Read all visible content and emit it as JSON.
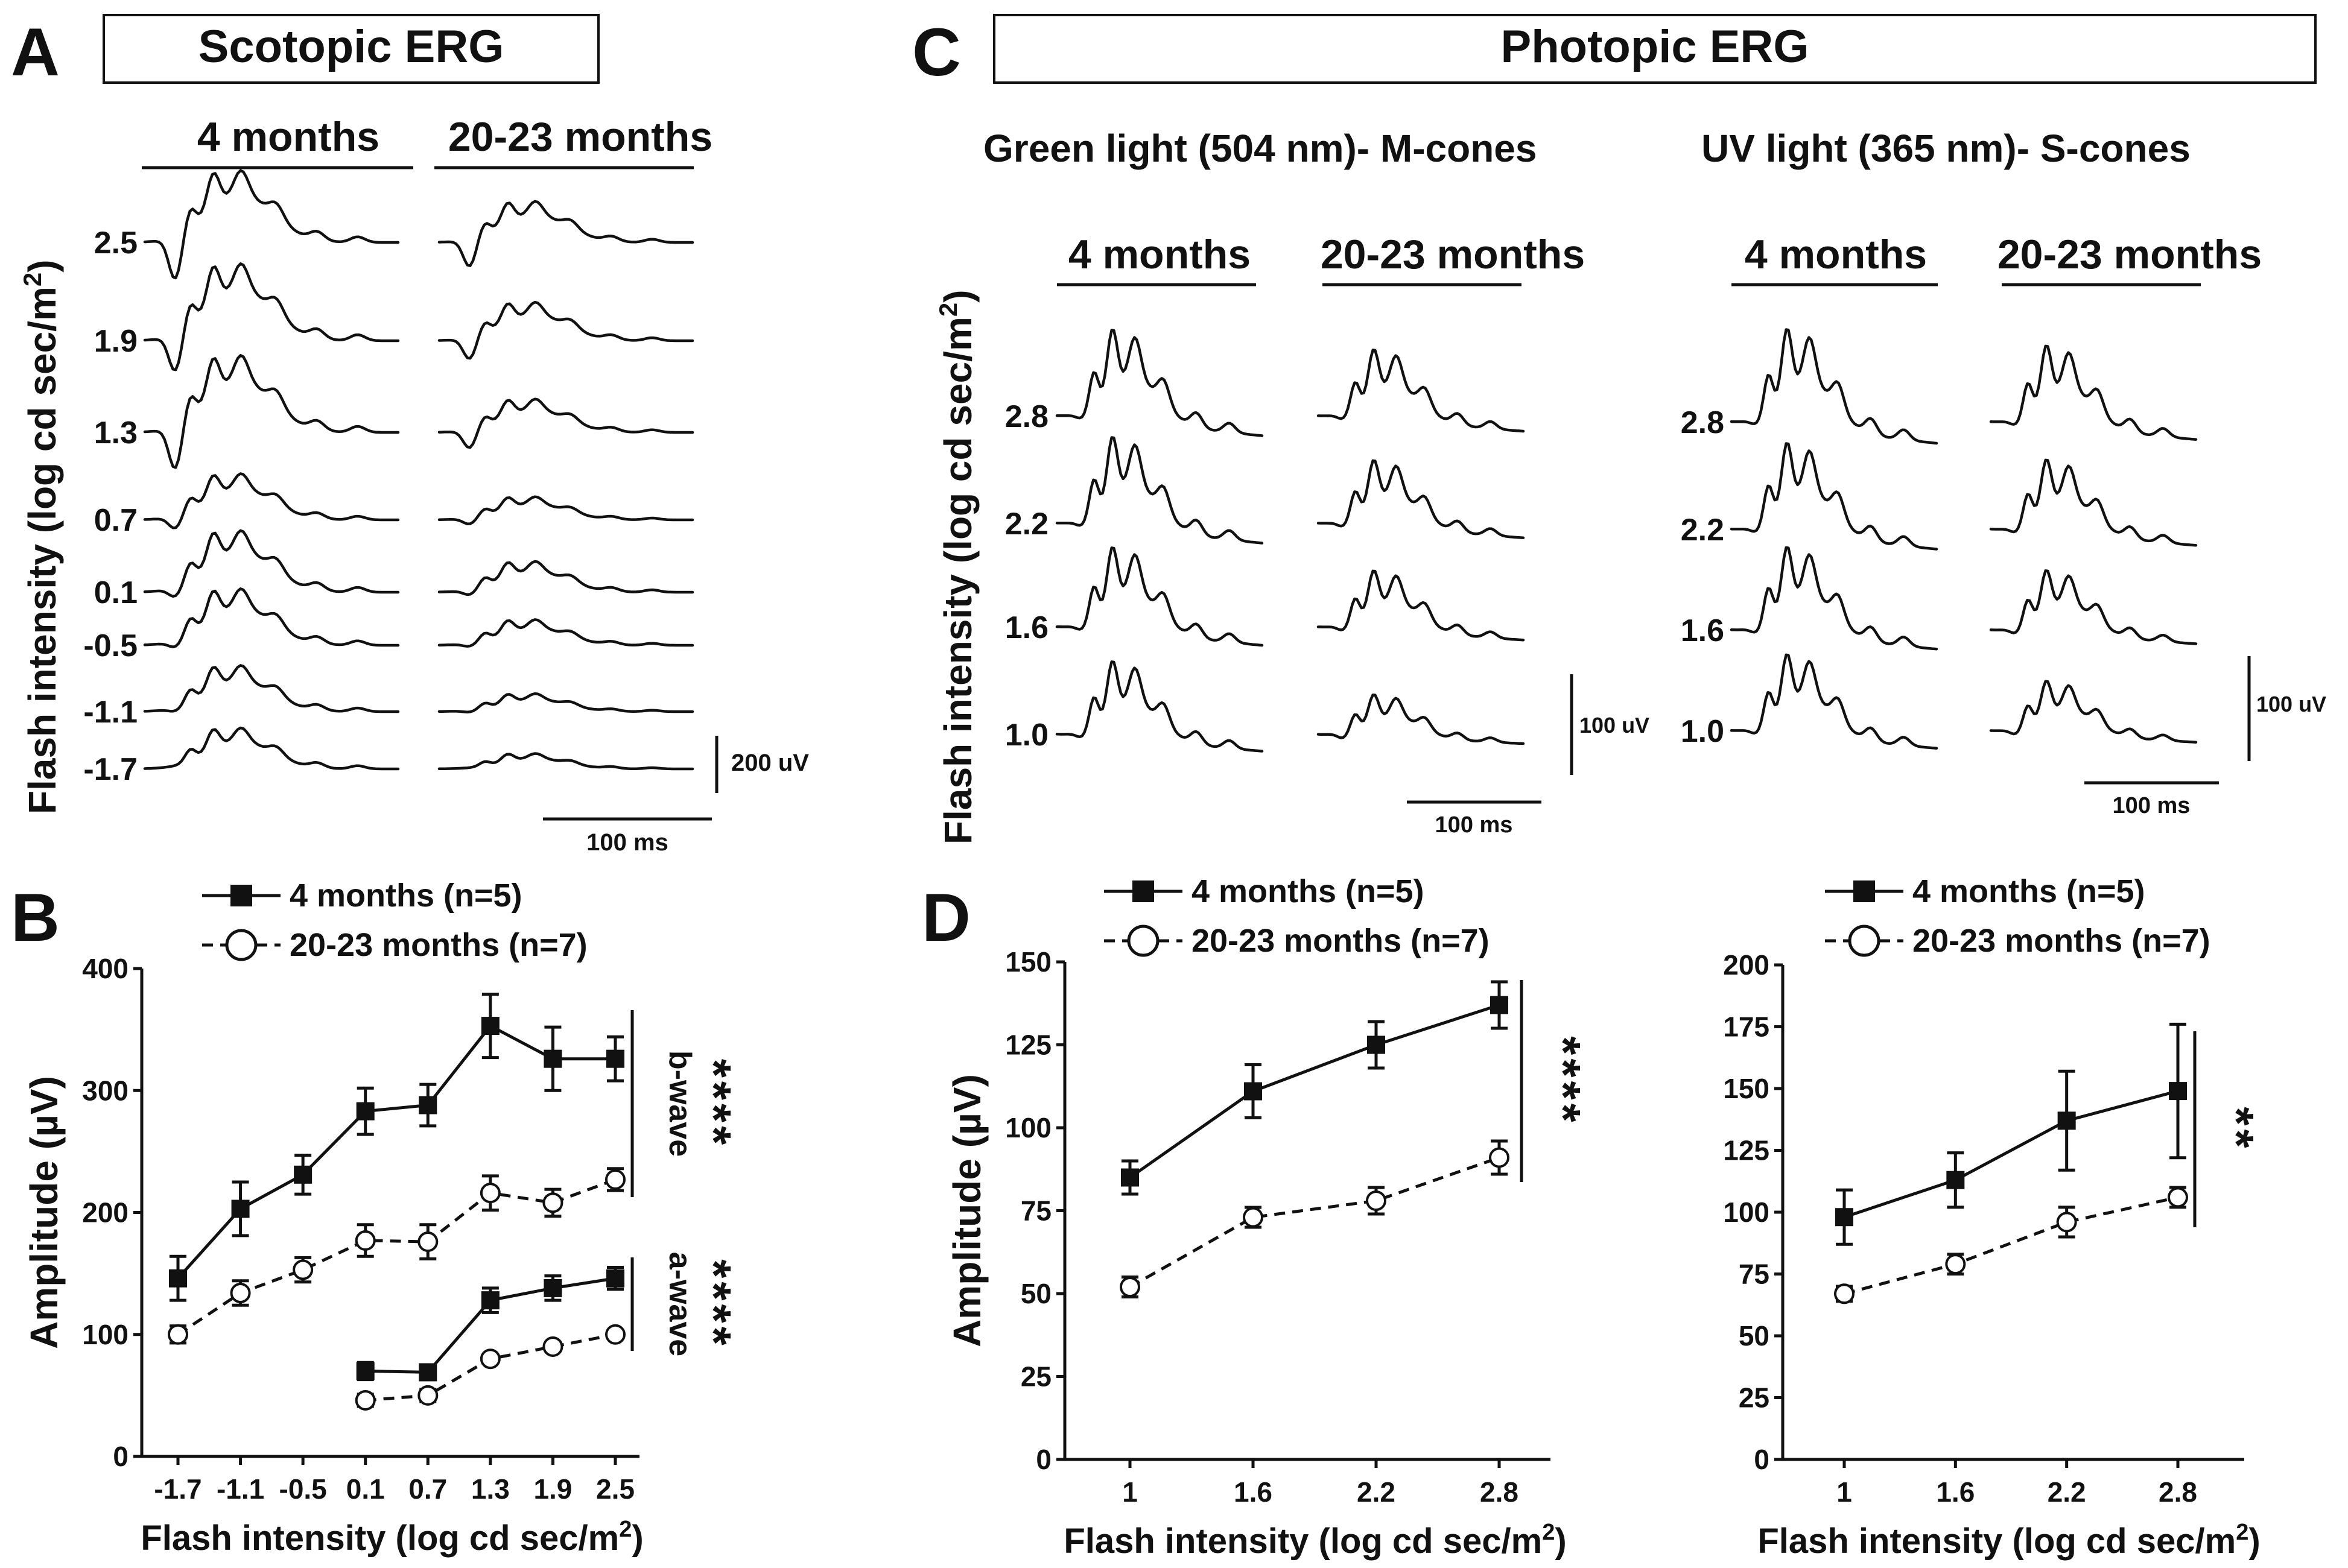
{
  "panels": {
    "A": {
      "letter": "A",
      "title": "Scotopic ERG",
      "groups": [
        "4 months",
        "20-23 months"
      ],
      "ylabel": "Flash intensity (log cd sec/m",
      "ylabel_sup": "2",
      "ylabel_close": ")",
      "intensities": [
        "2.5",
        "1.9",
        "1.3",
        "0.7",
        "0.1",
        "-0.5",
        "-1.1",
        "-1.7"
      ],
      "scale_amp": "200 uV",
      "scale_time": "100 ms"
    },
    "C": {
      "letter": "C",
      "title": "Photopic ERG",
      "ylabel": "Flash intensity (log cd sec/m",
      "ylabel_sup": "2",
      "ylabel_close": ")",
      "green_title": "Green light (504 nm)- M-cones",
      "uv_title": "UV light (365 nm)- S-cones",
      "groups": [
        "4 months",
        "20-23 months"
      ],
      "intensities": [
        "2.8",
        "2.2",
        "1.6",
        "1.0"
      ],
      "scale_amp": "100 uV",
      "scale_time": "100 ms"
    },
    "B": {
      "letter": "B"
    },
    "D": {
      "letter": "D"
    }
  },
  "chart_data": [
    {
      "id": "B",
      "type": "line",
      "title": "",
      "xlabel": "Flash intensity (log cd sec/m",
      "xlabel_sup": "2",
      "xlabel_close": ")",
      "ylabel": "Amplitude (µV)",
      "categories": [
        "-1.7",
        "-1.1",
        "-0.5",
        "0.1",
        "0.7",
        "1.3",
        "1.9",
        "2.5"
      ],
      "ylim": [
        0,
        400
      ],
      "yticks": [
        "0",
        "100",
        "200",
        "300",
        "400"
      ],
      "legend": [
        "4 months (n=5)",
        "20-23 months (n=7)"
      ],
      "series": [
        {
          "name": "b-wave 4 months",
          "values": [
            146,
            203,
            231,
            283,
            288,
            353,
            326,
            326
          ],
          "err": [
            18,
            22,
            16,
            19,
            17,
            26,
            26,
            18
          ]
        },
        {
          "name": "b-wave 20-23 months",
          "values": [
            100,
            134,
            153,
            177,
            176,
            216,
            208,
            227
          ],
          "err": [
            7,
            10,
            10,
            13,
            14,
            14,
            11,
            9
          ]
        },
        {
          "name": "a-wave 4 months",
          "values": [
            null,
            null,
            null,
            70,
            69,
            128,
            138,
            146
          ],
          "err": [
            0,
            0,
            0,
            7,
            6,
            10,
            10,
            9
          ]
        },
        {
          "name": "a-wave 20-23 months",
          "values": [
            null,
            null,
            null,
            46,
            50,
            80,
            90,
            100
          ],
          "err": [
            0,
            0,
            0,
            5,
            5,
            3,
            3,
            3
          ]
        }
      ],
      "annotations": [
        {
          "label": "b-wave",
          "stars": "****"
        },
        {
          "label": "a-wave",
          "stars": "****"
        }
      ]
    },
    {
      "id": "D1",
      "type": "line",
      "xlabel": "Flash intensity (log cd sec/m",
      "xlabel_sup": "2",
      "xlabel_close": ")",
      "ylabel": "Amplitude (µV)",
      "categories": [
        "1",
        "1.6",
        "2.2",
        "2.8"
      ],
      "ylim": [
        0,
        150
      ],
      "yticks": [
        "0",
        "25",
        "50",
        "75",
        "100",
        "125",
        "150"
      ],
      "legend": [
        "4 months (n=5)",
        "20-23 months (n=7)"
      ],
      "series": [
        {
          "name": "4 months (n=5)",
          "values": [
            85,
            111,
            125,
            137
          ],
          "err": [
            5,
            8,
            7,
            7
          ]
        },
        {
          "name": "20-23 months (n=7)",
          "values": [
            52,
            73,
            78,
            91
          ],
          "err": [
            3,
            3,
            4,
            5
          ]
        }
      ],
      "annotations": [
        {
          "stars": "****"
        }
      ]
    },
    {
      "id": "D2",
      "type": "line",
      "xlabel": "Flash intensity (log cd sec/m",
      "xlabel_sup": "2",
      "xlabel_close": ")",
      "ylabel": "",
      "categories": [
        "1",
        "1.6",
        "2.2",
        "2.8"
      ],
      "ylim": [
        0,
        200
      ],
      "yticks": [
        "0",
        "25",
        "50",
        "75",
        "100",
        "125",
        "150",
        "175",
        "200"
      ],
      "legend": [
        "4 months (n=5)",
        "20-23 months (n=7)"
      ],
      "series": [
        {
          "name": "4 months (n=5)",
          "values": [
            98,
            113,
            137,
            149
          ],
          "err": [
            11,
            11,
            20,
            27
          ]
        },
        {
          "name": "20-23 months (n=7)",
          "values": [
            67,
            79,
            96,
            106
          ],
          "err": [
            3,
            4,
            6,
            4
          ]
        }
      ],
      "annotations": [
        {
          "stars": "**"
        }
      ]
    }
  ]
}
